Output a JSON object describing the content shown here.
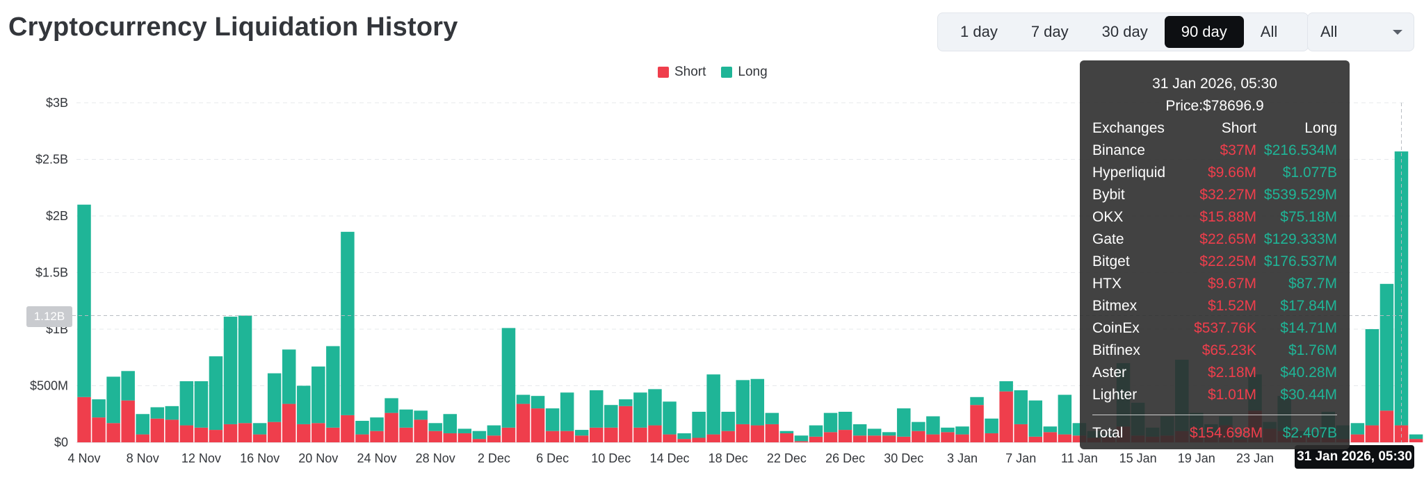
{
  "page": {
    "title": "Cryptocurrency Liquidation History"
  },
  "controls": {
    "ranges": [
      {
        "label": "1 day",
        "active": false
      },
      {
        "label": "7 day",
        "active": false
      },
      {
        "label": "30 day",
        "active": false
      },
      {
        "label": "90 day",
        "active": true
      },
      {
        "label": "All",
        "active": false
      }
    ],
    "select": {
      "value": "All"
    }
  },
  "colors": {
    "short": "#ef3e4c",
    "long": "#1fb597"
  },
  "crosshair": {
    "y_label": "1.12B",
    "x_label": "31 Jan 2026, 05:30",
    "y_value": 1.12
  },
  "tooltip": {
    "date": "31 Jan 2026, 05:30",
    "price": "Price:$78696.9",
    "headers": {
      "name": "Exchanges",
      "short": "Short",
      "long": "Long"
    },
    "rows": [
      {
        "name": "Binance",
        "short": "$37M",
        "long": "$216.534M"
      },
      {
        "name": "Hyperliquid",
        "short": "$9.66M",
        "long": "$1.077B"
      },
      {
        "name": "Bybit",
        "short": "$32.27M",
        "long": "$539.529M"
      },
      {
        "name": "OKX",
        "short": "$15.88M",
        "long": "$75.18M"
      },
      {
        "name": "Gate",
        "short": "$22.65M",
        "long": "$129.333M"
      },
      {
        "name": "Bitget",
        "short": "$22.25M",
        "long": "$176.537M"
      },
      {
        "name": "HTX",
        "short": "$9.67M",
        "long": "$87.7M"
      },
      {
        "name": "Bitmex",
        "short": "$1.52M",
        "long": "$17.84M"
      },
      {
        "name": "CoinEx",
        "short": "$537.76K",
        "long": "$14.71M"
      },
      {
        "name": "Bitfinex",
        "short": "$65.23K",
        "long": "$1.76M"
      },
      {
        "name": "Aster",
        "short": "$2.18M",
        "long": "$40.28M"
      },
      {
        "name": "Lighter",
        "short": "$1.01M",
        "long": "$30.44M"
      }
    ],
    "total": {
      "name": "Total",
      "short": "$154.698M",
      "long": "$2.407B"
    }
  },
  "chart_data": {
    "type": "bar",
    "stacked": true,
    "title": "Cryptocurrency Liquidation History",
    "unit": "USD billions",
    "ylim": [
      0,
      3
    ],
    "yticks": [
      0,
      0.5,
      1,
      1.5,
      2,
      2.5,
      3
    ],
    "ytick_labels": [
      "$0",
      "$500M",
      "$1B",
      "$1.5B",
      "$2B",
      "$2.5B",
      "$3B"
    ],
    "xtick_labels": [
      "4 Nov",
      "8 Nov",
      "12 Nov",
      "16 Nov",
      "20 Nov",
      "24 Nov",
      "28 Nov",
      "2 Dec",
      "6 Dec",
      "10 Dec",
      "14 Dec",
      "18 Dec",
      "22 Dec",
      "26 Dec",
      "30 Dec",
      "3 Jan",
      "7 Jan",
      "11 Jan",
      "15 Jan",
      "19 Jan",
      "23 Jan"
    ],
    "xtick_every_n_bars": 4,
    "legend": [
      "Short",
      "Long"
    ],
    "legend_position": "top-center",
    "grid": true,
    "series": [
      {
        "name": "Short",
        "values": [
          0.4,
          0.22,
          0.17,
          0.37,
          0.07,
          0.21,
          0.2,
          0.15,
          0.13,
          0.11,
          0.16,
          0.17,
          0.07,
          0.18,
          0.34,
          0.16,
          0.17,
          0.13,
          0.24,
          0.07,
          0.1,
          0.26,
          0.13,
          0.2,
          0.1,
          0.08,
          0.08,
          0.03,
          0.06,
          0.13,
          0.34,
          0.3,
          0.1,
          0.1,
          0.06,
          0.13,
          0.13,
          0.32,
          0.13,
          0.15,
          0.07,
          0.03,
          0.04,
          0.07,
          0.1,
          0.16,
          0.15,
          0.16,
          0.08,
          0.01,
          0.05,
          0.09,
          0.11,
          0.06,
          0.06,
          0.06,
          0.05,
          0.1,
          0.07,
          0.09,
          0.07,
          0.33,
          0.08,
          0.45,
          0.16,
          0.05,
          0.09,
          0.07,
          0.06,
          0.04,
          0.05,
          0.14,
          0.06,
          0.05,
          0.06,
          0.1,
          0.06,
          0.08,
          0.15,
          0.03,
          0.28,
          0.12,
          0.1,
          0.06,
          0.07,
          0.04,
          0.03,
          0.07,
          0.15,
          0.28,
          0.15,
          0.03
        ]
      },
      {
        "name": "Long",
        "values": [
          1.7,
          0.16,
          0.41,
          0.26,
          0.18,
          0.1,
          0.12,
          0.39,
          0.41,
          0.65,
          0.95,
          0.95,
          0.1,
          0.43,
          0.48,
          0.34,
          0.5,
          0.72,
          1.62,
          0.12,
          0.12,
          0.13,
          0.16,
          0.08,
          0.07,
          0.17,
          0.04,
          0.07,
          0.09,
          0.88,
          0.08,
          0.11,
          0.2,
          0.34,
          0.05,
          0.33,
          0.2,
          0.06,
          0.31,
          0.32,
          0.29,
          0.05,
          0.23,
          0.53,
          0.17,
          0.39,
          0.41,
          0.1,
          0.02,
          0.05,
          0.1,
          0.17,
          0.16,
          0.1,
          0.06,
          0.03,
          0.25,
          0.08,
          0.16,
          0.04,
          0.07,
          0.07,
          0.13,
          0.09,
          0.3,
          0.32,
          0.05,
          0.35,
          0.11,
          0.06,
          0.02,
          0.56,
          0.29,
          0.08,
          0.17,
          0.63,
          0.2,
          0.08,
          0.08,
          0.02,
          0.32,
          0.06,
          0.31,
          0.04,
          0.02,
          0.23,
          0.12,
          0.1,
          0.85,
          1.12,
          2.42,
          0.04
        ]
      }
    ]
  }
}
